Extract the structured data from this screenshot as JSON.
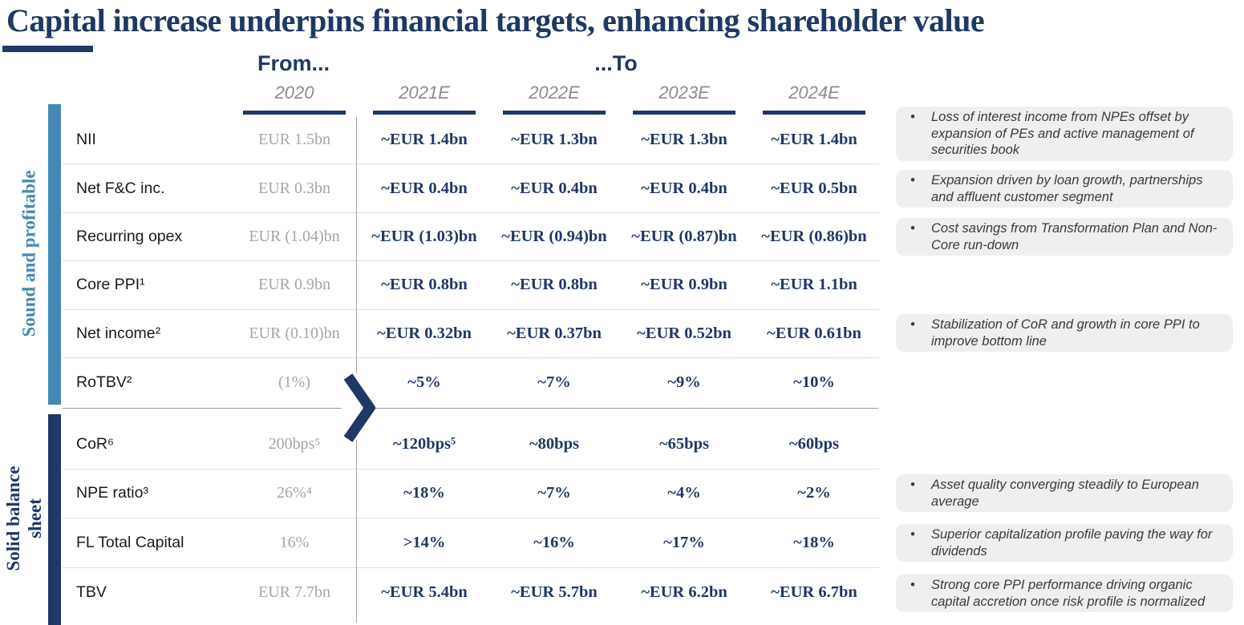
{
  "title": "Capital increase underpins financial targets, enhancing shareholder value",
  "header": {
    "from_label": "From...",
    "to_label": "...To",
    "years": [
      "2020",
      "2021E",
      "2022E",
      "2023E",
      "2024E"
    ]
  },
  "sections": [
    {
      "side_label": "Sound and profitable",
      "rows": [
        {
          "label": "NII",
          "base": "EUR 1.5bn",
          "targets": [
            "~EUR 1.4bn",
            "~EUR 1.3bn",
            "~EUR 1.3bn",
            "~EUR 1.4bn"
          ]
        },
        {
          "label": "Net F&C inc.",
          "base": "EUR 0.3bn",
          "targets": [
            "~EUR 0.4bn",
            "~EUR 0.4bn",
            "~EUR 0.4bn",
            "~EUR 0.5bn"
          ]
        },
        {
          "label": "Recurring opex",
          "base": "EUR (1.04)bn",
          "targets": [
            "~EUR (1.03)bn",
            "~EUR (0.94)bn",
            "~EUR (0.87)bn",
            "~EUR (0.86)bn"
          ]
        },
        {
          "label": "Core PPI¹",
          "base": "EUR 0.9bn",
          "targets": [
            "~EUR 0.8bn",
            "~EUR 0.8bn",
            "~EUR 0.9bn",
            "~EUR 1.1bn"
          ]
        },
        {
          "label": "Net income²",
          "base": "EUR (0.10)bn",
          "targets": [
            "~EUR 0.32bn",
            "~EUR 0.37bn",
            "~EUR 0.52bn",
            "~EUR 0.61bn"
          ]
        },
        {
          "label": "RoTBV²",
          "base": "(1%)",
          "targets": [
            "~5%",
            "~7%",
            "~9%",
            "~10%"
          ]
        }
      ]
    },
    {
      "side_label": "Solid balance sheet",
      "rows": [
        {
          "label": "CoR⁶",
          "base": "200bps⁵",
          "targets": [
            "~120bps⁵",
            "~80bps",
            "~65bps",
            "~60bps"
          ]
        },
        {
          "label": "NPE ratio³",
          "base": "26%⁴",
          "targets": [
            "~18%",
            "~7%",
            "~4%",
            "~2%"
          ]
        },
        {
          "label": "FL Total Capital",
          "base": "16%",
          "targets": [
            ">14%",
            "~16%",
            "~17%",
            "~18%"
          ]
        },
        {
          "label": "TBV",
          "base": "EUR 7.7bn",
          "targets": [
            "~EUR 5.4bn",
            "~EUR 5.7bn",
            "~EUR 6.2bn",
            "~EUR 6.7bn"
          ]
        }
      ]
    }
  ],
  "annotations": [
    {
      "bullet": "•",
      "text": "Loss of interest income from NPEs offset by expansion of PEs and active management of securities book"
    },
    {
      "bullet": "•",
      "text": "Expansion driven by loan growth, partnerships and affluent customer segment"
    },
    {
      "bullet": "•",
      "text": "Cost savings from Transformation Plan and Non-Core run-down"
    },
    {
      "bullet": "•",
      "text": "Stabilization of CoR and growth in core PPI to improve bottom line"
    },
    {
      "bullet": "•",
      "text": "Asset quality converging steadily to European average"
    },
    {
      "bullet": "•",
      "text": "Superior capitalization profile paving the way for dividends"
    },
    {
      "bullet": "•",
      "text": "Strong core PPI performance driving organic capital accretion once risk profile is normalized"
    }
  ],
  "colors": {
    "navy": "#1F3864",
    "steel_blue": "#4588B4",
    "year_gray": "#8C8C8C",
    "base_value_gray": "#A6A6A6",
    "annotation_bg": "#EFEFEF",
    "row_separator": "#DFDFDF",
    "section_separator": "#9B9B9B"
  }
}
